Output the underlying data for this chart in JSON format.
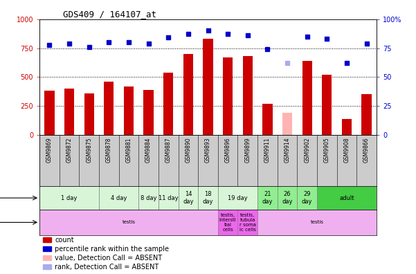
{
  "title": "GDS409 / 164107_at",
  "samples": [
    "GSM9869",
    "GSM9872",
    "GSM9875",
    "GSM9878",
    "GSM9881",
    "GSM9884",
    "GSM9887",
    "GSM9890",
    "GSM9893",
    "GSM9896",
    "GSM9899",
    "GSM9911",
    "GSM9914",
    "GSM9902",
    "GSM9905",
    "GSM9908",
    "GSM9866"
  ],
  "counts": [
    380,
    400,
    360,
    460,
    420,
    390,
    540,
    700,
    830,
    670,
    680,
    270,
    190,
    640,
    520,
    140,
    350
  ],
  "counts_absent": [
    false,
    false,
    false,
    false,
    false,
    false,
    false,
    false,
    false,
    false,
    false,
    false,
    true,
    false,
    false,
    false,
    false
  ],
  "percentile": [
    78,
    79,
    76,
    80,
    80,
    79,
    84,
    87,
    90,
    87,
    86,
    74,
    62,
    85,
    83,
    62,
    79
  ],
  "percentile_absent": [
    false,
    false,
    false,
    false,
    false,
    false,
    false,
    false,
    false,
    false,
    false,
    false,
    true,
    false,
    false,
    false,
    false
  ],
  "ylim_left": [
    0,
    1000
  ],
  "ylim_right": [
    0,
    100
  ],
  "age_groups": [
    {
      "label": "1 day",
      "start": 0,
      "end": 3,
      "color": "#d8f5d8"
    },
    {
      "label": "4 day",
      "start": 3,
      "end": 5,
      "color": "#d8f5d8"
    },
    {
      "label": "8 day",
      "start": 5,
      "end": 6,
      "color": "#d8f5d8"
    },
    {
      "label": "11 day",
      "start": 6,
      "end": 7,
      "color": "#d8f5d8"
    },
    {
      "label": "14\nday",
      "start": 7,
      "end": 8,
      "color": "#d8f5d8"
    },
    {
      "label": "18\nday",
      "start": 8,
      "end": 9,
      "color": "#d8f5d8"
    },
    {
      "label": "19 day",
      "start": 9,
      "end": 11,
      "color": "#d8f5d8"
    },
    {
      "label": "21\nday",
      "start": 11,
      "end": 12,
      "color": "#90ee90"
    },
    {
      "label": "26\nday",
      "start": 12,
      "end": 13,
      "color": "#90ee90"
    },
    {
      "label": "29\nday",
      "start": 13,
      "end": 14,
      "color": "#90ee90"
    },
    {
      "label": "adult",
      "start": 14,
      "end": 17,
      "color": "#44cc44"
    }
  ],
  "tissue_groups": [
    {
      "label": "testis",
      "start": 0,
      "end": 9,
      "color": "#f0b0f0"
    },
    {
      "label": "testis,\nintersti\ntial\ncells",
      "start": 9,
      "end": 10,
      "color": "#ee66ee"
    },
    {
      "label": "testis,\ntubula\nr soma\nic cells",
      "start": 10,
      "end": 11,
      "color": "#ee66ee"
    },
    {
      "label": "testis",
      "start": 11,
      "end": 17,
      "color": "#f0b0f0"
    }
  ],
  "bar_color": "#cc0000",
  "bar_color_absent": "#ffb3b3",
  "dot_color": "#0000cc",
  "dot_color_absent": "#aaaaee",
  "bg_color": "#ffffff",
  "tick_color_left": "#cc0000",
  "tick_color_right": "#0000cc",
  "xlabel_area_bg": "#cccccc",
  "legend_items": [
    {
      "color": "#cc0000",
      "label": "count"
    },
    {
      "color": "#0000cc",
      "label": "percentile rank within the sample"
    },
    {
      "color": "#ffb3b3",
      "label": "value, Detection Call = ABSENT"
    },
    {
      "color": "#aaaaee",
      "label": "rank, Detection Call = ABSENT"
    }
  ]
}
